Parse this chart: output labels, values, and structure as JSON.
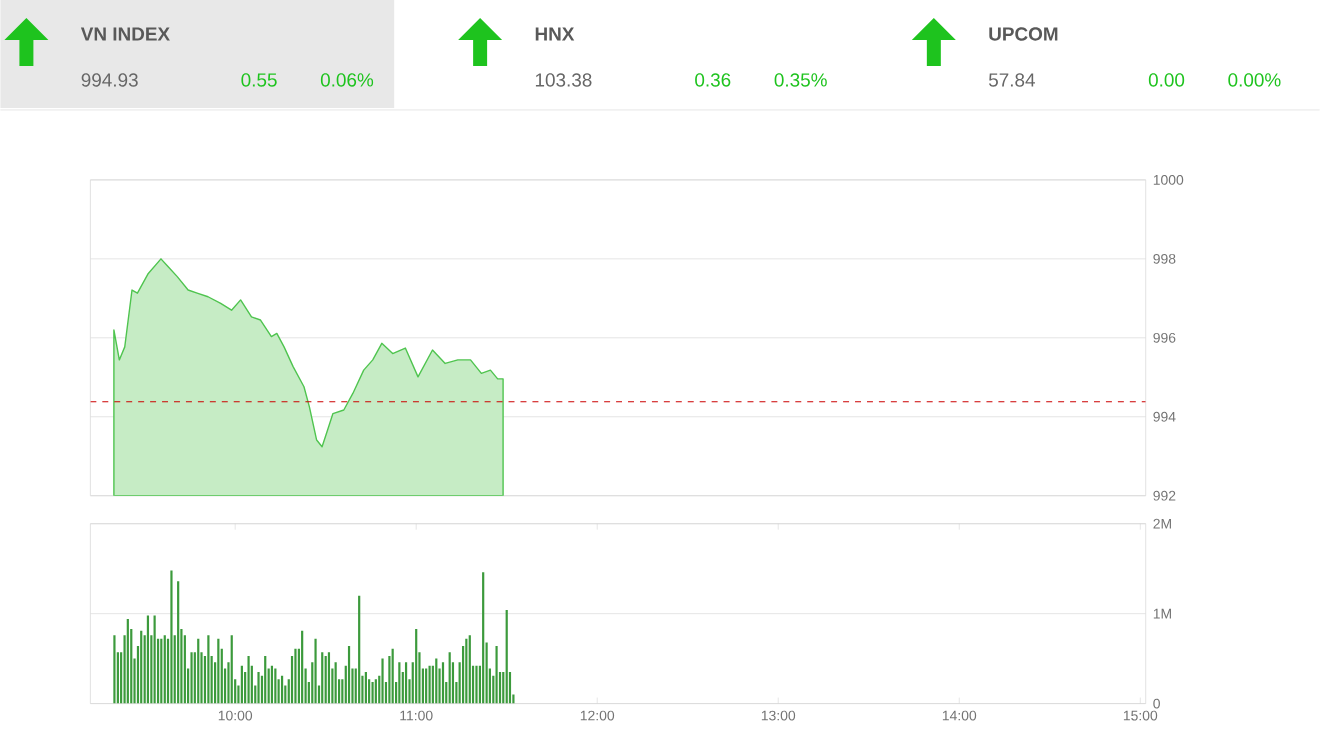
{
  "chart_data": [
    {
      "type": "other",
      "annotations": [
        "VN INDEX",
        "994.93",
        "0.55",
        "0.06%",
        "HNX",
        "103.38",
        "0.36",
        "0.35%",
        "UPCOM",
        "57.84",
        "0.00",
        "0.00%"
      ]
    },
    {
      "type": "area",
      "color": "#c6ecc5",
      "xlim": [
        9.2,
        15.03
      ],
      "ylim": [
        992,
        1000
      ],
      "tick_labels": "y",
      "grid": "y",
      "xticks": [
        {
          "value": 10,
          "label": null
        },
        {
          "value": 11,
          "label": null
        },
        {
          "value": 12,
          "label": null
        },
        {
          "value": 13,
          "label": null
        },
        {
          "value": 14,
          "label": null
        },
        {
          "value": 15,
          "label": null
        }
      ],
      "yticks": [
        992,
        994,
        996,
        998,
        1000
      ],
      "ref_lines": [
        {
          "axis": "y",
          "value": 994.38,
          "color": "#cc0000",
          "line_style": "dashed"
        }
      ],
      "x": [
        9.33,
        9.36,
        9.39,
        9.43,
        9.46,
        9.52,
        9.59,
        9.63,
        9.68,
        9.74,
        9.79,
        9.85,
        9.92,
        9.98,
        10.03,
        10.09,
        10.14,
        10.2,
        10.23,
        10.27,
        10.32,
        10.38,
        10.41,
        10.45,
        10.48,
        10.51,
        10.54,
        10.6,
        10.65,
        10.71,
        10.76,
        10.81,
        10.87,
        10.94,
        11.01,
        11.09,
        11.16,
        11.23,
        11.3,
        11.36,
        11.41,
        11.45,
        11.48
      ],
      "values": [
        996.2,
        995.44,
        995.77,
        997.21,
        997.13,
        997.63,
        998.0,
        997.8,
        997.55,
        997.21,
        997.13,
        997.04,
        996.87,
        996.7,
        996.96,
        996.53,
        996.45,
        996.03,
        996.11,
        995.77,
        995.27,
        994.76,
        994.25,
        993.41,
        993.24,
        993.66,
        994.08,
        994.17,
        994.59,
        995.18,
        995.44,
        995.86,
        995.6,
        995.74,
        995.01,
        995.69,
        995.35,
        995.44,
        995.44,
        995.1,
        995.18,
        994.96,
        994.96
      ]
    },
    {
      "type": "bar",
      "color": "#3c9a3c",
      "xlim": [
        9.2,
        15.03
      ],
      "ylim": [
        0,
        2000000
      ],
      "grid": "y",
      "xticks": [
        {
          "value": 10,
          "label": "10:00"
        },
        {
          "value": 11,
          "label": "11:00"
        },
        {
          "value": 12,
          "label": "12:00"
        },
        {
          "value": 13,
          "label": "13:00"
        },
        {
          "value": 14,
          "label": "14:00"
        },
        {
          "value": 15,
          "label": "15:00"
        }
      ],
      "yticks": [
        0,
        {
          "value": 1000000,
          "label": "1M"
        },
        {
          "value": 2000000,
          "label": "2M"
        }
      ],
      "x": [
        9.333,
        9.352,
        9.37,
        9.389,
        9.407,
        9.426,
        9.444,
        9.463,
        9.481,
        9.5,
        9.518,
        9.537,
        9.555,
        9.574,
        9.592,
        9.611,
        9.629,
        9.648,
        9.666,
        9.685,
        9.703,
        9.722,
        9.74,
        9.759,
        9.777,
        9.796,
        9.814,
        9.833,
        9.852,
        9.87,
        9.889,
        9.907,
        9.926,
        9.944,
        9.963,
        9.981,
        10.0,
        10.018,
        10.037,
        10.055,
        10.074,
        10.092,
        10.111,
        10.129,
        10.148,
        10.166,
        10.185,
        10.203,
        10.222,
        10.24,
        10.259,
        10.277,
        10.296,
        10.314,
        10.333,
        10.352,
        10.37,
        10.389,
        10.407,
        10.426,
        10.444,
        10.463,
        10.481,
        10.5,
        10.518,
        10.537,
        10.555,
        10.574,
        10.592,
        10.611,
        10.629,
        10.648,
        10.666,
        10.685,
        10.703,
        10.722,
        10.74,
        10.759,
        10.777,
        10.796,
        10.814,
        10.833,
        10.852,
        10.87,
        10.889,
        10.907,
        10.926,
        10.944,
        10.963,
        10.981,
        11.0,
        11.018,
        11.037,
        11.055,
        11.074,
        11.092,
        11.111,
        11.129,
        11.148,
        11.166,
        11.185,
        11.203,
        11.222,
        11.24,
        11.259,
        11.277,
        11.296,
        11.314,
        11.333,
        11.352,
        11.37,
        11.389,
        11.407,
        11.426,
        11.444,
        11.463,
        11.481,
        11.5,
        11.518,
        11.537
      ],
      "values": [
        760000,
        570000,
        570000,
        760000,
        940000,
        830000,
        500000,
        640000,
        810000,
        760000,
        980000,
        760000,
        980000,
        720000,
        720000,
        760000,
        720000,
        1480000,
        760000,
        1360000,
        830000,
        760000,
        390000,
        570000,
        570000,
        720000,
        570000,
        530000,
        760000,
        530000,
        460000,
        720000,
        610000,
        390000,
        460000,
        760000,
        270000,
        200000,
        420000,
        350000,
        530000,
        420000,
        200000,
        350000,
        310000,
        530000,
        390000,
        420000,
        390000,
        270000,
        310000,
        200000,
        270000,
        530000,
        610000,
        610000,
        810000,
        390000,
        240000,
        460000,
        720000,
        200000,
        570000,
        530000,
        570000,
        390000,
        460000,
        270000,
        270000,
        420000,
        640000,
        390000,
        390000,
        1200000,
        310000,
        350000,
        270000,
        240000,
        270000,
        310000,
        500000,
        240000,
        530000,
        610000,
        240000,
        460000,
        350000,
        460000,
        270000,
        460000,
        830000,
        570000,
        390000,
        390000,
        420000,
        420000,
        500000,
        390000,
        460000,
        240000,
        570000,
        460000,
        240000,
        460000,
        640000,
        720000,
        760000,
        420000,
        420000,
        420000,
        1460000,
        680000,
        390000,
        310000,
        640000,
        350000,
        350000,
        1040000,
        350000,
        100000
      ]
    }
  ]
}
